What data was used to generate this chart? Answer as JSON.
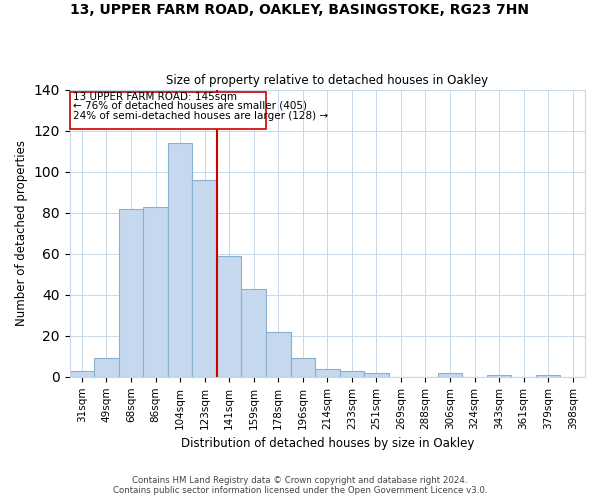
{
  "title": "13, UPPER FARM ROAD, OAKLEY, BASINGSTOKE, RG23 7HN",
  "subtitle": "Size of property relative to detached houses in Oakley",
  "xlabel": "Distribution of detached houses by size in Oakley",
  "ylabel": "Number of detached properties",
  "bar_labels": [
    "31sqm",
    "49sqm",
    "68sqm",
    "86sqm",
    "104sqm",
    "123sqm",
    "141sqm",
    "159sqm",
    "178sqm",
    "196sqm",
    "214sqm",
    "233sqm",
    "251sqm",
    "269sqm",
    "288sqm",
    "306sqm",
    "324sqm",
    "343sqm",
    "361sqm",
    "379sqm",
    "398sqm"
  ],
  "bar_heights": [
    3,
    9,
    82,
    83,
    114,
    96,
    59,
    43,
    22,
    9,
    4,
    3,
    2,
    0,
    0,
    2,
    0,
    1,
    0,
    1,
    0
  ],
  "bar_color": "#c5d8ed",
  "bar_edge_color": "#8ab0d0",
  "property_line_label": "13 UPPER FARM ROAD: 145sqm",
  "annotation_line1": "← 76% of detached houses are smaller (405)",
  "annotation_line2": "24% of semi-detached houses are larger (128) →",
  "vline_color": "#cc0000",
  "ylim": [
    0,
    140
  ],
  "yticks": [
    0,
    20,
    40,
    60,
    80,
    100,
    120,
    140
  ],
  "footer_line1": "Contains HM Land Registry data © Crown copyright and database right 2024.",
  "footer_line2": "Contains public sector information licensed under the Open Government Licence v3.0.",
  "bg_color": "#ffffff",
  "grid_color": "#c8d8e8"
}
